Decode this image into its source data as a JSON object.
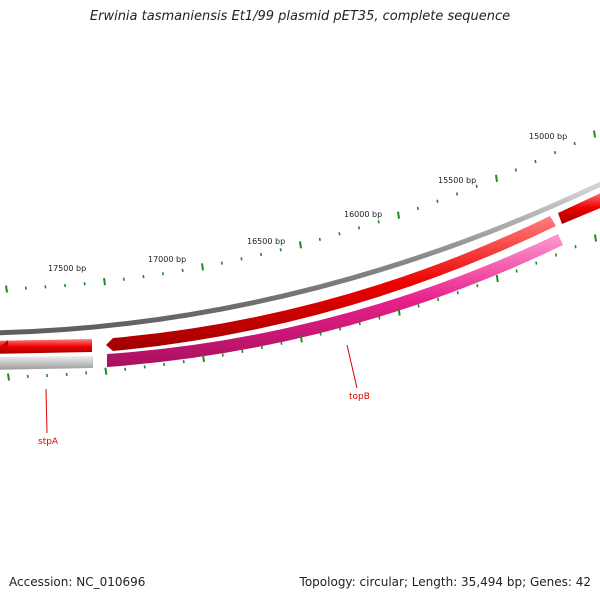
{
  "title": "Erwinia tasmaniensis Et1/99 plasmid pET35, complete sequence",
  "footer": {
    "accession": "Accession: NC_010696",
    "summary": "Topology: circular; Length: 35,494 bp; Genes: 42"
  },
  "colors": {
    "backbone": "#8a8a8a",
    "forward_gene": "#ee0000",
    "reverse_gene": "#e8208a",
    "reverse_gene_gray": "#c4c4c4",
    "tick": "#1f8a1f",
    "gene_label": "#dd0000"
  },
  "map": {
    "tick_labels": [
      {
        "bp": 15000,
        "text": "15000 bp"
      },
      {
        "bp": 15500,
        "text": "15500 bp"
      },
      {
        "bp": 16000,
        "text": "16000 bp"
      },
      {
        "bp": 16500,
        "text": "16500 bp"
      },
      {
        "bp": 17000,
        "text": "17000 bp"
      },
      {
        "bp": 17500,
        "text": "17500 bp"
      }
    ],
    "gene_labels": [
      {
        "name": "topB",
        "text": "topB"
      },
      {
        "name": "stpA",
        "text": "stpA"
      }
    ]
  }
}
